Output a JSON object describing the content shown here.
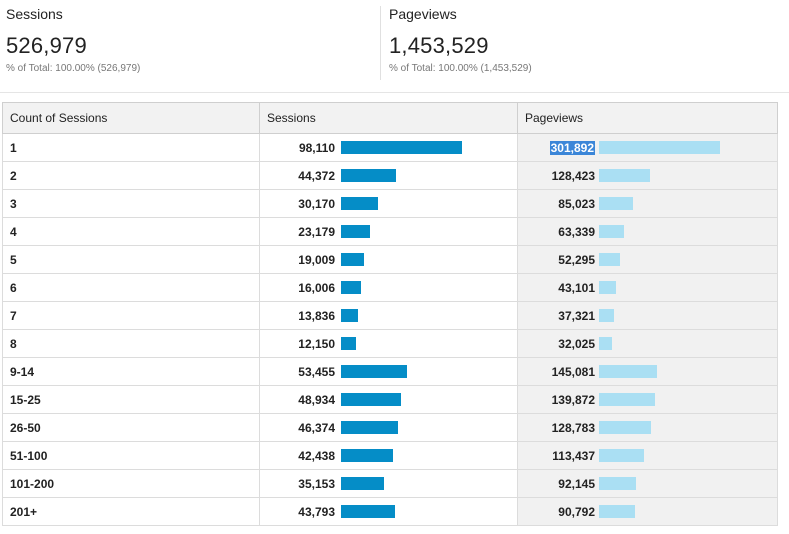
{
  "summary": {
    "sessions": {
      "label": "Sessions",
      "value": "526,979",
      "sub": "% of Total: 100.00% (526,979)"
    },
    "pageviews": {
      "label": "Pageviews",
      "value": "1,453,529",
      "sub": "% of Total: 100.00% (1,453,529)"
    }
  },
  "table": {
    "headers": [
      "Count of Sessions",
      "Sessions",
      "Pageviews"
    ],
    "rows": [
      {
        "dim": "1",
        "sessions": "98,110",
        "pageviews": "301,892",
        "s": 98110,
        "p": 301892
      },
      {
        "dim": "2",
        "sessions": "44,372",
        "pageviews": "128,423",
        "s": 44372,
        "p": 128423
      },
      {
        "dim": "3",
        "sessions": "30,170",
        "pageviews": "85,023",
        "s": 30170,
        "p": 85023
      },
      {
        "dim": "4",
        "sessions": "23,179",
        "pageviews": "63,339",
        "s": 23179,
        "p": 63339
      },
      {
        "dim": "5",
        "sessions": "19,009",
        "pageviews": "52,295",
        "s": 19009,
        "p": 52295
      },
      {
        "dim": "6",
        "sessions": "16,006",
        "pageviews": "43,101",
        "s": 16006,
        "p": 43101
      },
      {
        "dim": "7",
        "sessions": "13,836",
        "pageviews": "37,321",
        "s": 13836,
        "p": 37321
      },
      {
        "dim": "8",
        "sessions": "12,150",
        "pageviews": "32,025",
        "s": 12150,
        "p": 32025
      },
      {
        "dim": "9-14",
        "sessions": "53,455",
        "pageviews": "145,081",
        "s": 53455,
        "p": 145081
      },
      {
        "dim": "15-25",
        "sessions": "48,934",
        "pageviews": "139,872",
        "s": 48934,
        "p": 139872
      },
      {
        "dim": "26-50",
        "sessions": "46,374",
        "pageviews": "128,783",
        "s": 46374,
        "p": 128783
      },
      {
        "dim": "51-100",
        "sessions": "42,438",
        "pageviews": "113,437",
        "s": 42438,
        "p": 113437
      },
      {
        "dim": "101-200",
        "sessions": "35,153",
        "pageviews": "92,145",
        "s": 35153,
        "p": 92145
      },
      {
        "dim": "201+",
        "sessions": "43,793",
        "pageviews": "90,792",
        "s": 43793,
        "p": 90792
      }
    ]
  },
  "colors": {
    "sessions_bar": "#058dc7",
    "pageviews_bar": "#aadff3",
    "selection": "#3b86d8"
  }
}
